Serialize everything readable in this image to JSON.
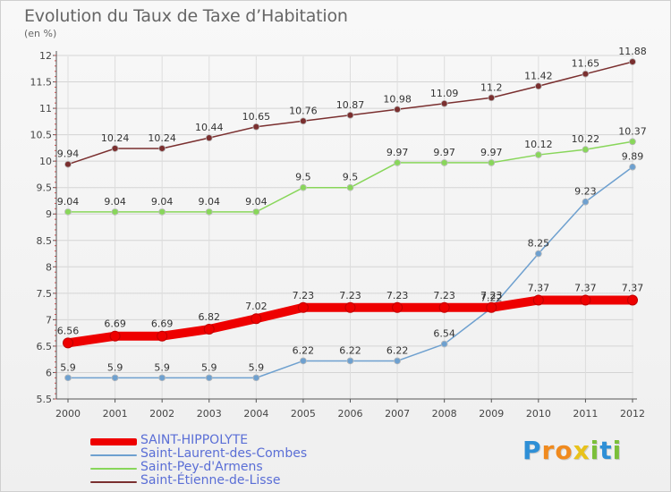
{
  "chart_data": {
    "type": "line",
    "title": "Evolution du Taux de Taxe d’Habitation",
    "subtitle": "(en %)",
    "categories": [
      "2000",
      "2001",
      "2002",
      "2003",
      "2004",
      "2005",
      "2006",
      "2007",
      "2008",
      "2009",
      "2010",
      "2011",
      "2012"
    ],
    "yticks": [
      "5.5",
      "6",
      "6.5",
      "7",
      "7.5",
      "8",
      "8.5",
      "9",
      "9.5",
      "10",
      "10.5",
      "11",
      "11.5",
      "12"
    ],
    "ylim": [
      5.5,
      12
    ],
    "grid": true,
    "series": [
      {
        "name": "SAINT-HIPPOLYTE",
        "color": "#ee0000",
        "values": [
          6.56,
          6.69,
          6.69,
          6.82,
          7.02,
          7.23,
          7.23,
          7.23,
          7.23,
          7.23,
          7.37,
          7.37,
          7.37
        ],
        "labels": [
          "6.56",
          "6.69",
          "6.69",
          "6.82",
          "7.02",
          "7.23",
          "7.23",
          "7.23",
          "7.23",
          "7.23",
          "7.37",
          "7.37",
          "7.37"
        ]
      },
      {
        "name": "Saint-Laurent-des-Combes",
        "color": "#6ea0cf",
        "values": [
          5.9,
          5.9,
          5.9,
          5.9,
          5.9,
          6.22,
          6.22,
          6.22,
          6.54,
          7.22,
          8.25,
          9.23,
          9.89
        ],
        "labels": [
          "5.9",
          "5.9",
          "5.9",
          "5.9",
          "5.9",
          "6.22",
          "6.22",
          "6.22",
          "6.54",
          "7.22",
          "8.25",
          "9.23",
          "9.89"
        ]
      },
      {
        "name": "Saint-Pey-d'Armens",
        "color": "#88d65a",
        "values": [
          9.04,
          9.04,
          9.04,
          9.04,
          9.04,
          9.5,
          9.5,
          9.97,
          9.97,
          9.97,
          10.12,
          10.22,
          10.37
        ],
        "labels": [
          "9.04",
          "9.04",
          "9.04",
          "9.04",
          "9.04",
          "9.5",
          "9.5",
          "9.97",
          "9.97",
          "9.97",
          "10.12",
          "10.22",
          "10.37"
        ]
      },
      {
        "name": "Saint-Étienne-de-Lisse",
        "color": "#7a2f2f",
        "values": [
          9.94,
          10.24,
          10.24,
          10.44,
          10.65,
          10.76,
          10.87,
          10.98,
          11.09,
          11.2,
          11.42,
          11.65,
          11.88
        ],
        "labels": [
          "9.94",
          "10.24",
          "10.24",
          "10.44",
          "10.65",
          "10.76",
          "10.87",
          "10.98",
          "11.09",
          "11.2",
          "11.42",
          "11.65",
          "11.88"
        ]
      }
    ]
  },
  "brand": {
    "letters": [
      "P",
      "r",
      "o",
      "x",
      "i",
      "t",
      "i"
    ],
    "colors": [
      "#2e8fd6",
      "#f08a1e",
      "#f08a1e",
      "#e8c21a",
      "#7bbf3a",
      "#2e8fd6",
      "#7bbf3a"
    ]
  }
}
